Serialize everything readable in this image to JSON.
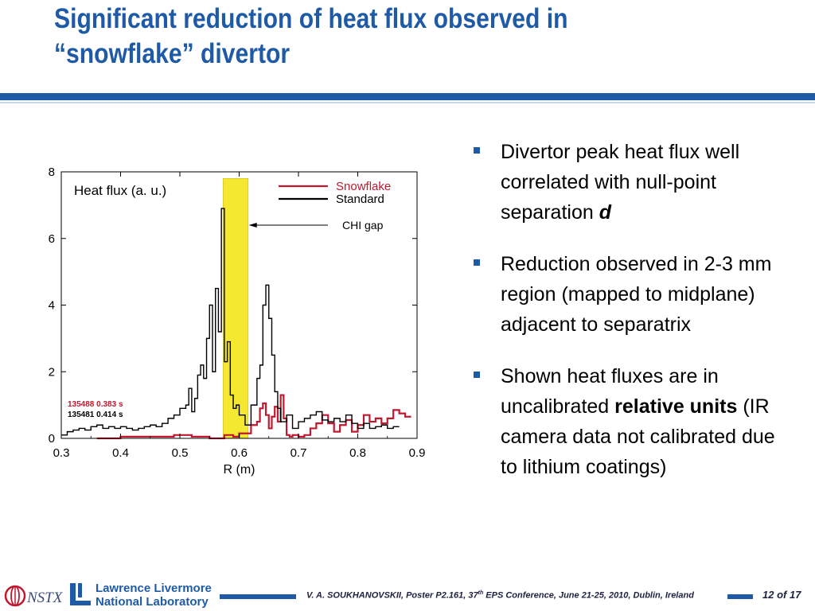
{
  "slide": {
    "title_line1": "Significant reduction of heat flux observed in",
    "title_line2": "“snowflake” divertor"
  },
  "bullets": [
    {
      "parts": [
        {
          "text": "Divertor peak heat flux well correlated with null-point separation "
        },
        {
          "text": "d",
          "style": "bold-italic"
        }
      ]
    },
    {
      "parts": [
        {
          "text": "Reduction observed in 2-3 mm region  (mapped to midplane) adjacent to separatrix"
        }
      ]
    },
    {
      "parts": [
        {
          "text": "Shown heat fluxes are in uncalibrated "
        },
        {
          "text": "relative units",
          "style": "bold"
        },
        {
          "text": " (IR camera data not calibrated due to lithium coatings)"
        }
      ]
    }
  ],
  "footer": {
    "llnl_line1": "Lawrence Livermore",
    "llnl_line2": "National Laboratory",
    "nstx_label": "NSTX",
    "citation_pre": "V. A. SOUKHANOVSKII, Poster P2.161, 37",
    "citation_sup": "th",
    "citation_post": " EPS Conference, June 21-25, 2010, Dublin, Ireland",
    "page_current": "12",
    "page_of": "of",
    "page_total": "17",
    "accent_color": "#1f5aa6"
  },
  "chart_data": {
    "type": "line",
    "xlabel": "R (m)",
    "ylabel": "Heat flux (a. u.)",
    "xlim": [
      0.3,
      0.9
    ],
    "ylim": [
      0,
      8
    ],
    "xticks": [
      0.3,
      0.4,
      0.5,
      0.6,
      0.7,
      0.8,
      0.9
    ],
    "yticks": [
      0,
      2,
      4,
      6,
      8
    ],
    "legend_position": "top-right",
    "series": [
      {
        "name": "Snowflake",
        "color": "#c0192f",
        "step": true,
        "x": [
          0.36,
          0.4,
          0.45,
          0.49,
          0.52,
          0.55,
          0.575,
          0.59,
          0.6,
          0.61,
          0.62,
          0.63,
          0.635,
          0.64,
          0.645,
          0.65,
          0.655,
          0.66,
          0.665,
          0.67,
          0.675,
          0.68,
          0.685,
          0.69,
          0.7,
          0.71,
          0.72,
          0.73,
          0.74,
          0.75,
          0.76,
          0.77,
          0.78,
          0.79,
          0.8,
          0.81,
          0.82,
          0.83,
          0.84,
          0.85,
          0.86,
          0.87,
          0.88
        ],
        "values": [
          0.0,
          0.05,
          0.05,
          0.1,
          0.05,
          0.0,
          0.1,
          0.05,
          0.15,
          0.15,
          0.4,
          0.5,
          0.9,
          1.05,
          0.7,
          0.3,
          0.65,
          0.95,
          0.5,
          1.3,
          0.6,
          0.1,
          0.05,
          0.1,
          0.05,
          0.1,
          0.3,
          0.45,
          0.7,
          0.45,
          0.2,
          0.4,
          0.55,
          0.2,
          0.4,
          0.7,
          0.5,
          0.6,
          0.45,
          0.6,
          0.85,
          0.75,
          0.65
        ]
      },
      {
        "name": "Standard",
        "color": "#000000",
        "step": true,
        "x": [
          0.3,
          0.31,
          0.32,
          0.33,
          0.34,
          0.35,
          0.36,
          0.37,
          0.38,
          0.39,
          0.4,
          0.41,
          0.42,
          0.43,
          0.44,
          0.45,
          0.46,
          0.47,
          0.48,
          0.49,
          0.5,
          0.51,
          0.515,
          0.52,
          0.525,
          0.53,
          0.535,
          0.54,
          0.545,
          0.55,
          0.555,
          0.56,
          0.565,
          0.57,
          0.575,
          0.58,
          0.585,
          0.59,
          0.595,
          0.6,
          0.61,
          0.62,
          0.63,
          0.635,
          0.64,
          0.645,
          0.65,
          0.655,
          0.66,
          0.665,
          0.67,
          0.68,
          0.69,
          0.7,
          0.71,
          0.72,
          0.73,
          0.74,
          0.75,
          0.76,
          0.77,
          0.78,
          0.79,
          0.8,
          0.81,
          0.82,
          0.83,
          0.84,
          0.85,
          0.86
        ],
        "values": [
          0.1,
          0.2,
          0.25,
          0.3,
          0.25,
          0.35,
          0.4,
          0.3,
          0.35,
          0.3,
          0.35,
          0.3,
          0.25,
          0.3,
          0.35,
          0.4,
          0.35,
          0.45,
          0.6,
          0.7,
          0.9,
          1.0,
          1.5,
          0.8,
          1.2,
          1.9,
          2.2,
          1.8,
          3.0,
          4.0,
          2.0,
          4.5,
          3.2,
          6.9,
          2.3,
          2.9,
          1.3,
          0.9,
          1.0,
          0.7,
          0.4,
          1.0,
          1.8,
          2.2,
          4.0,
          4.6,
          3.6,
          2.5,
          1.4,
          0.9,
          0.5,
          0.7,
          0.3,
          0.5,
          0.6,
          0.7,
          0.8,
          0.55,
          0.5,
          0.6,
          0.5,
          0.7,
          0.45,
          0.3,
          0.45,
          0.3,
          0.35,
          0.4,
          0.3,
          0.35
        ]
      }
    ],
    "highlight_band": {
      "x0": 0.573,
      "x1": 0.615,
      "y1": 7.8,
      "color": "#f5e831"
    },
    "annotation": {
      "text": "CHI gap",
      "arrow_to_x": 0.615,
      "y": 6.4
    },
    "shot_labels": [
      {
        "text": "135488 0.383 s",
        "color": "#c0192f"
      },
      {
        "text": "135481 0.414 s",
        "color": "#000000"
      }
    ]
  }
}
